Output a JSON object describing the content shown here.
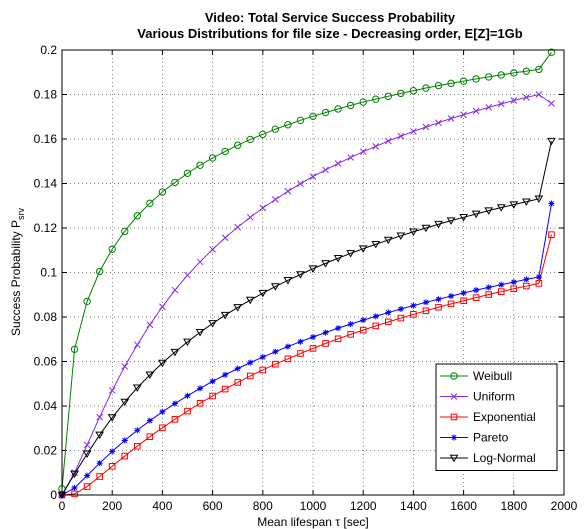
{
  "chart_data": {
    "type": "line",
    "title": "Video: Total Service Success Probability",
    "subtitle": "Various Distributions for file size - Decreasing order, E[Z]=1Gb",
    "xlabel": "Mean lifespan τ [sec]",
    "ylabel": "Success Probability P",
    "ylabel_subscript": "srv",
    "xlim": [
      0,
      2000
    ],
    "ylim": [
      0,
      0.2
    ],
    "xticks": [
      "0",
      "200",
      "400",
      "600",
      "800",
      "1000",
      "1200",
      "1400",
      "1600",
      "1800",
      "2000"
    ],
    "yticks": [
      "0",
      "0.02",
      "0.04",
      "0.06",
      "0.08",
      "0.1",
      "0.12",
      "0.14",
      "0.16",
      "0.18",
      "0.2"
    ],
    "grid": true,
    "legend_position": "bottom-right",
    "x": [
      0,
      50,
      100,
      150,
      200,
      250,
      300,
      350,
      400,
      450,
      500,
      550,
      600,
      650,
      700,
      750,
      800,
      850,
      900,
      950,
      1000,
      1050,
      1100,
      1150,
      1200,
      1250,
      1300,
      1350,
      1400,
      1450,
      1500,
      1550,
      1600,
      1650,
      1700,
      1750,
      1800,
      1850,
      1900,
      1950
    ],
    "series": [
      {
        "name": "Weibull",
        "color": "#008000",
        "marker": "circle",
        "values": [
          0.0028,
          0.0655,
          0.087,
          0.1005,
          0.1105,
          0.1185,
          0.1255,
          0.1311,
          0.1362,
          0.1405,
          0.1446,
          0.1482,
          0.1515,
          0.1544,
          0.1572,
          0.1598,
          0.1621,
          0.1644,
          0.1664,
          0.1684,
          0.1702,
          0.1719,
          0.1735,
          0.1751,
          0.1766,
          0.1779,
          0.1792,
          0.1805,
          0.1817,
          0.1829,
          0.184,
          0.185,
          0.186,
          0.187,
          0.1879,
          0.1888,
          0.1897,
          0.1905,
          0.1913,
          0.199
        ]
      },
      {
        "name": "Uniform",
        "color": "#8a2be2",
        "marker": "x",
        "values": [
          0.0,
          0.01,
          0.0225,
          0.035,
          0.047,
          0.0578,
          0.0675,
          0.0765,
          0.0846,
          0.0921,
          0.0988,
          0.1048,
          0.1104,
          0.1156,
          0.1204,
          0.1248,
          0.129,
          0.1328,
          0.1365,
          0.1399,
          0.1431,
          0.1461,
          0.149,
          0.1517,
          0.1543,
          0.1567,
          0.1591,
          0.1613,
          0.1634,
          0.1654,
          0.1673,
          0.1692,
          0.1709,
          0.1726,
          0.1742,
          0.1758,
          0.1773,
          0.1787,
          0.18,
          0.176
        ]
      },
      {
        "name": "Exponential",
        "color": "#ff0000",
        "marker": "square",
        "values": [
          0.0,
          0.0005,
          0.0038,
          0.0083,
          0.0129,
          0.0175,
          0.0219,
          0.0262,
          0.0302,
          0.034,
          0.0377,
          0.0412,
          0.0445,
          0.0476,
          0.0506,
          0.0535,
          0.0562,
          0.0588,
          0.0612,
          0.0636,
          0.0659,
          0.0681,
          0.0702,
          0.0722,
          0.0741,
          0.076,
          0.0778,
          0.0795,
          0.0812,
          0.0828,
          0.0844,
          0.0859,
          0.0873,
          0.0887,
          0.0901,
          0.0914,
          0.0927,
          0.0939,
          0.0951,
          0.117
        ]
      },
      {
        "name": "Pareto",
        "color": "#0000ff",
        "marker": "star",
        "values": [
          0.0,
          0.0032,
          0.0087,
          0.0143,
          0.0196,
          0.0245,
          0.0291,
          0.0334,
          0.0374,
          0.0411,
          0.0446,
          0.0479,
          0.0511,
          0.054,
          0.0568,
          0.0595,
          0.062,
          0.0644,
          0.0667,
          0.0689,
          0.071,
          0.073,
          0.075,
          0.0768,
          0.0786,
          0.0803,
          0.082,
          0.0836,
          0.0851,
          0.0866,
          0.088,
          0.0894,
          0.0908,
          0.0921,
          0.0933,
          0.0945,
          0.0957,
          0.0969,
          0.098,
          0.131
        ]
      },
      {
        "name": "Log-Normal",
        "color": "#000000",
        "marker": "triangle-down",
        "values": [
          0.0,
          0.0095,
          0.0185,
          0.027,
          0.0348,
          0.0418,
          0.0482,
          0.054,
          0.0593,
          0.0642,
          0.0688,
          0.0731,
          0.0771,
          0.0808,
          0.0843,
          0.0876,
          0.0907,
          0.0937,
          0.0965,
          0.0991,
          0.1017,
          0.1041,
          0.1064,
          0.1086,
          0.1107,
          0.1127,
          0.1146,
          0.1165,
          0.1183,
          0.12,
          0.1217,
          0.1233,
          0.1248,
          0.1263,
          0.1278,
          0.1292,
          0.1305,
          0.1318,
          0.1331,
          0.159
        ]
      }
    ]
  }
}
